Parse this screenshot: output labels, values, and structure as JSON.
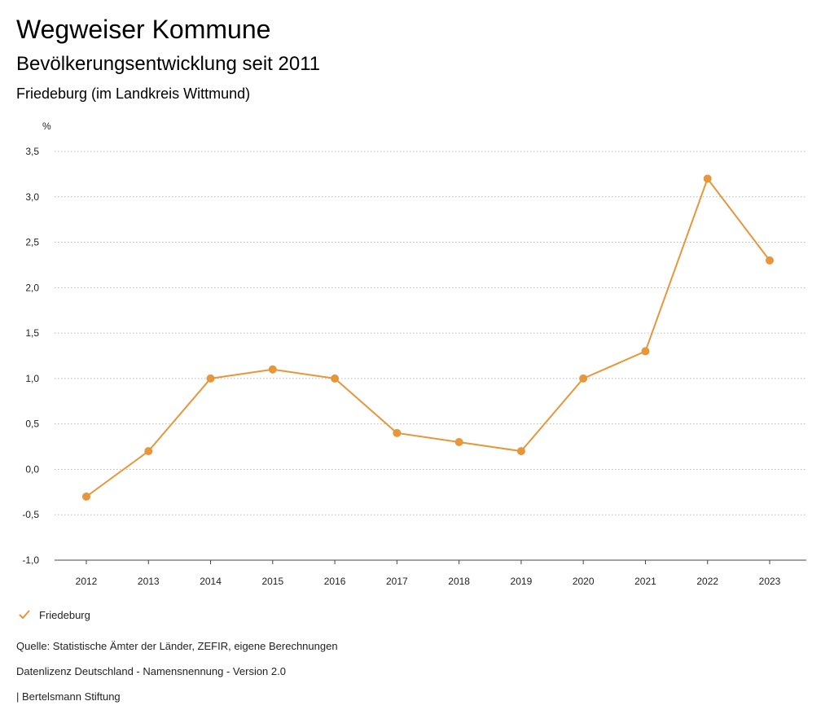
{
  "header": {
    "title": "Wegweiser Kommune",
    "subtitle": "Bevölkerungsentwicklung seit 2011",
    "region": "Friedeburg (im Landkreis Wittmund)"
  },
  "chart_data": {
    "type": "line",
    "title": "Bevölkerungsentwicklung seit 2011",
    "xlabel": "",
    "ylabel": "%",
    "x": [
      "2012",
      "2013",
      "2014",
      "2015",
      "2016",
      "2017",
      "2018",
      "2019",
      "2020",
      "2021",
      "2022",
      "2023"
    ],
    "series": [
      {
        "name": "Friedeburg",
        "values": [
          -0.3,
          0.2,
          1.0,
          1.1,
          1.0,
          0.4,
          0.3,
          0.2,
          1.0,
          1.3,
          3.2,
          2.3
        ]
      }
    ],
    "ylim": [
      -1.0,
      3.5
    ],
    "yticks": [
      -1.0,
      -0.5,
      0.0,
      0.5,
      1.0,
      1.5,
      2.0,
      2.5,
      3.0,
      3.5
    ],
    "ytick_labels": [
      "-1,0",
      "-0,5",
      "0,0",
      "0,5",
      "1,0",
      "1,5",
      "2,0",
      "2,5",
      "3,0",
      "3,5"
    ],
    "grid": true,
    "legend_position": "bottom-left",
    "colors": {
      "series": "#e8963a",
      "grid": "#b8b8b8",
      "axis": "#444444"
    }
  },
  "legend": {
    "items": [
      {
        "label": "Friedeburg"
      }
    ]
  },
  "footer": {
    "source": "Quelle: Statistische Ämter der Länder, ZEFIR, eigene Berechnungen",
    "license": "Datenlizenz Deutschland - Namensnennung - Version 2.0",
    "publisher": "| Bertelsmann Stiftung"
  }
}
